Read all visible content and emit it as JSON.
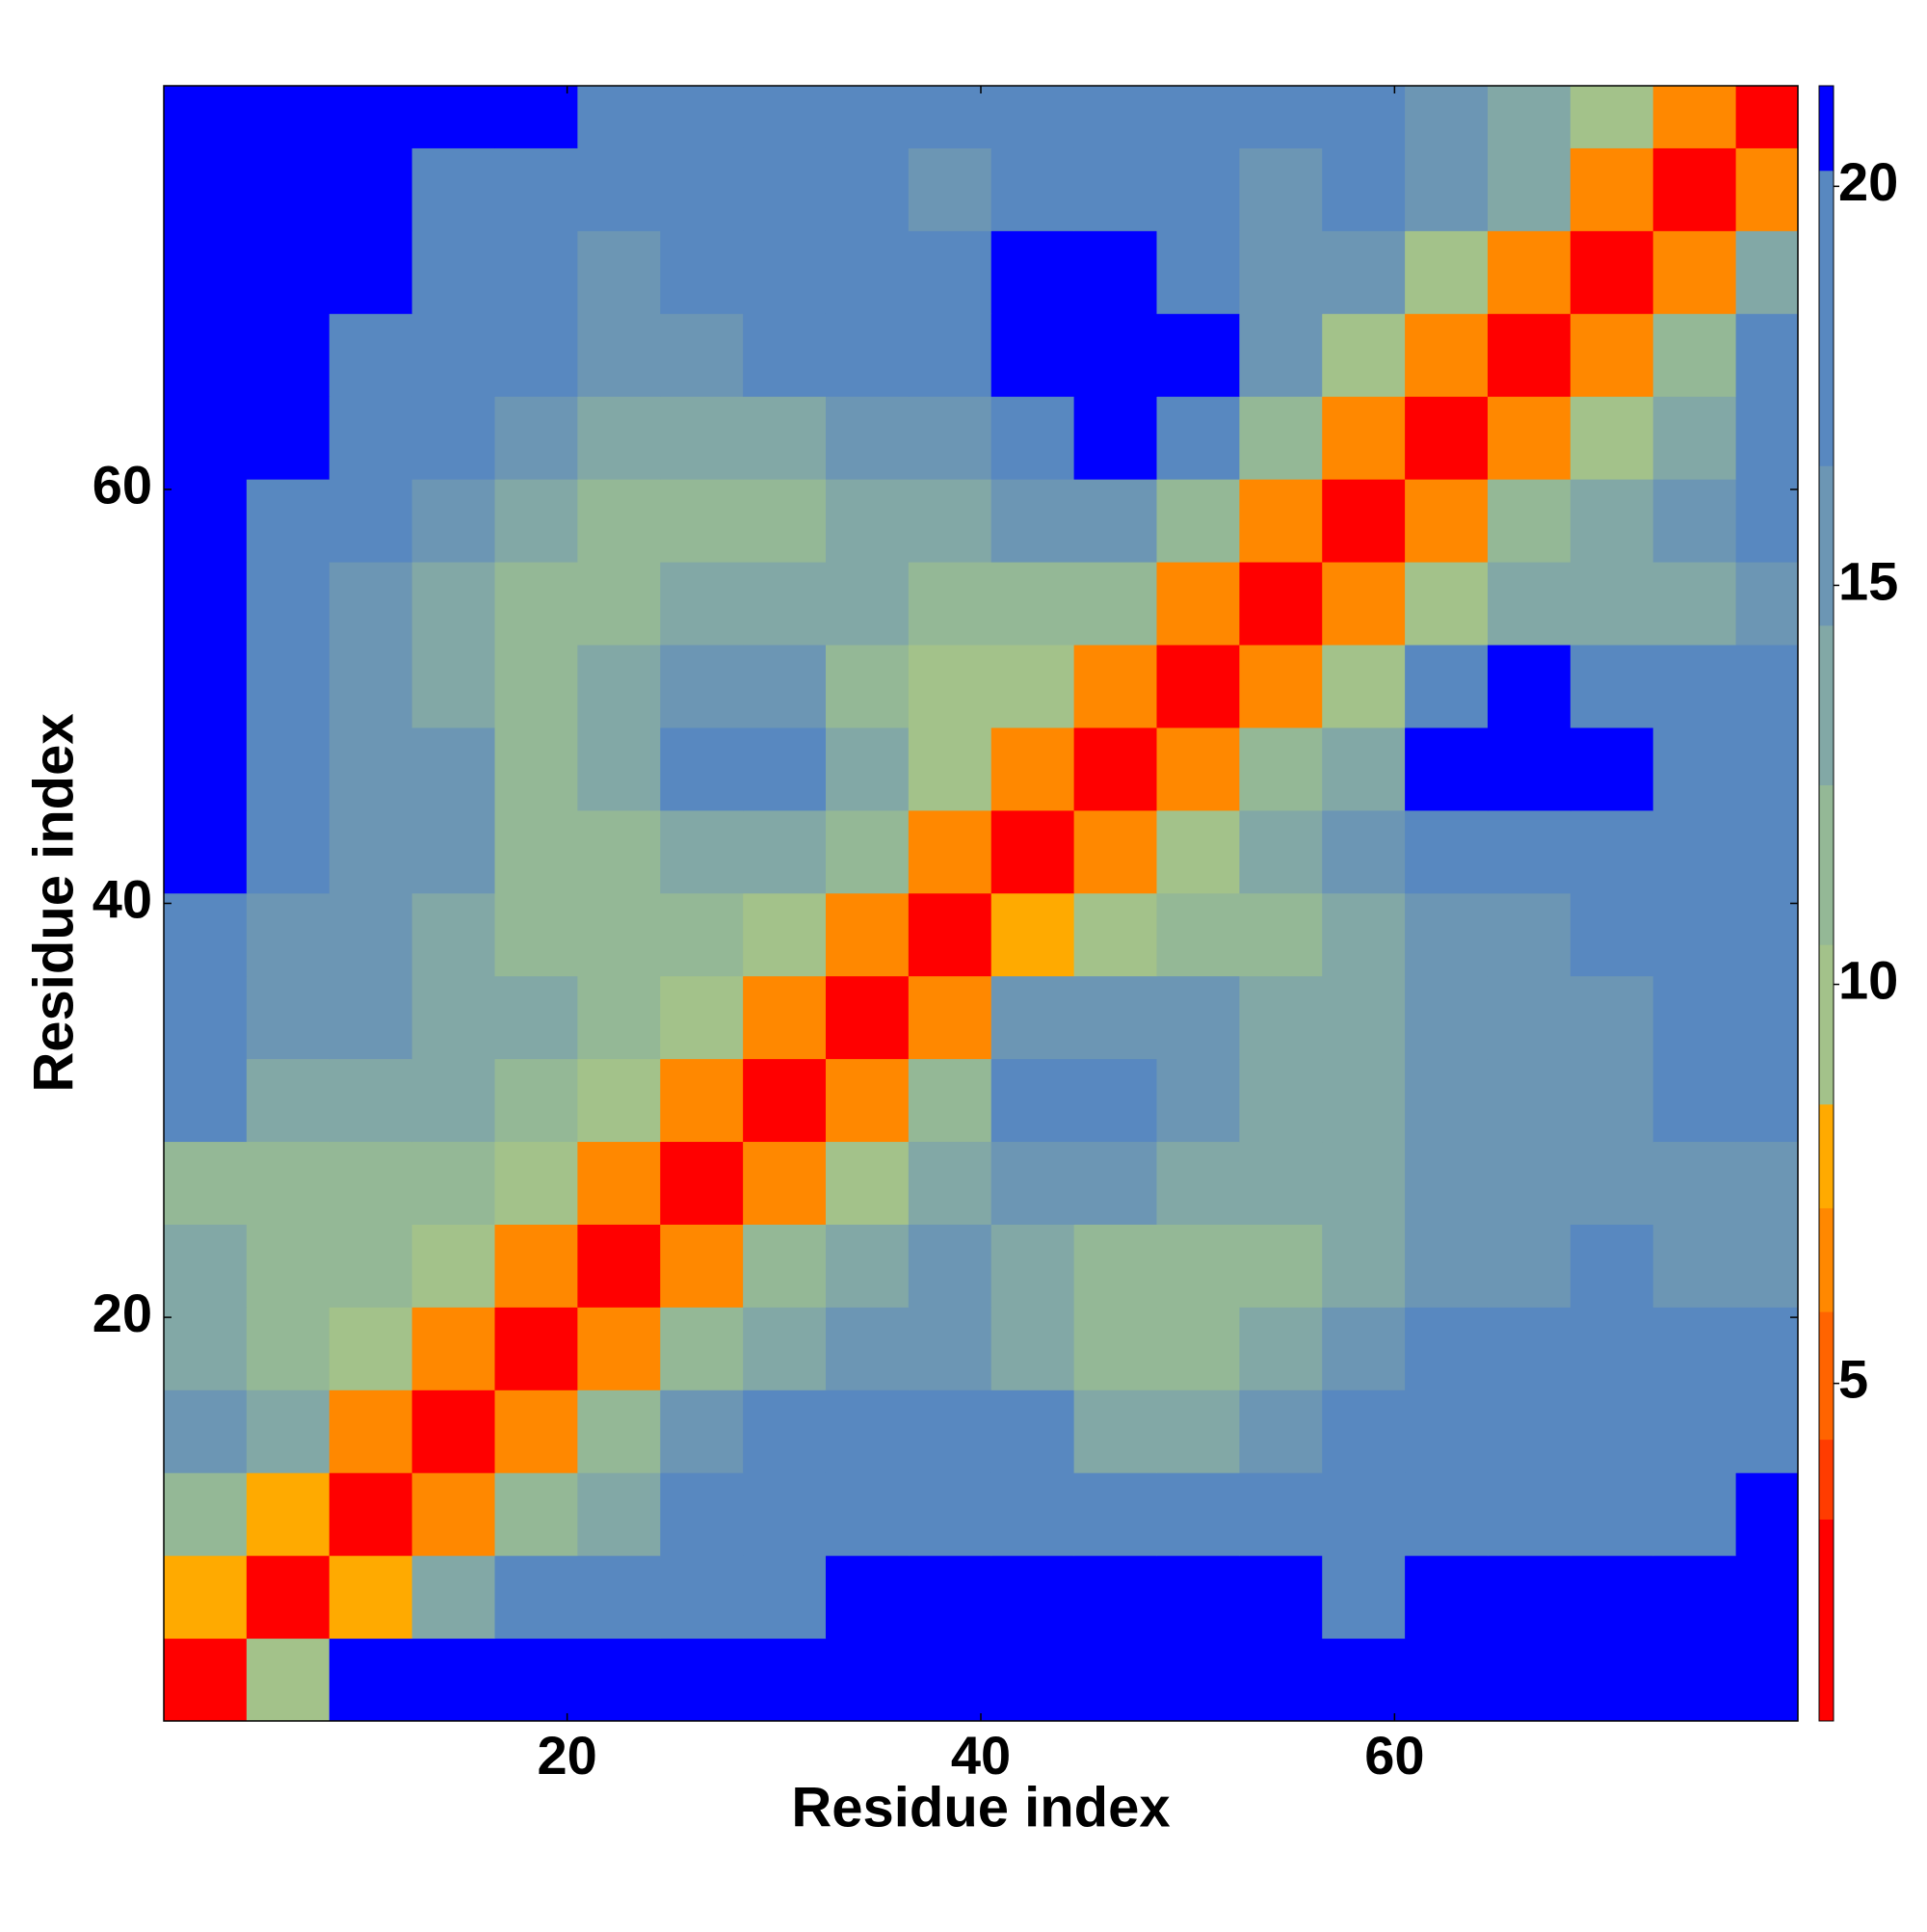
{
  "chart_data": {
    "type": "heatmap",
    "x_label": "Residue index",
    "y_label": "Residue index",
    "xlim": [
      0.5,
      79.5
    ],
    "ylim": [
      0.5,
      79.5
    ],
    "xticks": [
      20,
      40,
      60
    ],
    "yticks": [
      20,
      40,
      60
    ],
    "xbins": [
      0.5,
      4.5,
      8.5,
      12.5,
      16.5,
      20.5,
      24.5,
      28.5,
      32.5,
      36.5,
      40.5,
      44.5,
      48.5,
      52.5,
      56.5,
      60.5,
      64.5,
      68.5,
      72.5,
      76.5,
      79.5
    ],
    "ybins": [
      0.5,
      4.5,
      8.5,
      12.5,
      16.5,
      20.5,
      24.5,
      28.5,
      32.5,
      36.5,
      40.5,
      44.5,
      48.5,
      52.5,
      56.5,
      60.5,
      64.5,
      68.5,
      72.5,
      76.5,
      79.5
    ],
    "z": [
      [
        3,
        10,
        21,
        21,
        21,
        21,
        21,
        21,
        21,
        21,
        21,
        21,
        21,
        21,
        21,
        21,
        21,
        21,
        21,
        21
      ],
      [
        8,
        3,
        8,
        14,
        17,
        17,
        18,
        19,
        21,
        21,
        21,
        21,
        21,
        21,
        19,
        21,
        21,
        21,
        21,
        21
      ],
      [
        12,
        8,
        3,
        7,
        12,
        14,
        17,
        18,
        19,
        19,
        18,
        17,
        18,
        19,
        19,
        20,
        19,
        19,
        20,
        21
      ],
      [
        15,
        13,
        7,
        3,
        7,
        12,
        16,
        17,
        17,
        18,
        17,
        14,
        14,
        16,
        17,
        19,
        18,
        19,
        18,
        19
      ],
      [
        14,
        12,
        10,
        7,
        3,
        7,
        11,
        14,
        15,
        16,
        13,
        11,
        12,
        14,
        15,
        17,
        17,
        18,
        17,
        18
      ],
      [
        13,
        11,
        11,
        9,
        7,
        3,
        7,
        11,
        13,
        15,
        14,
        12,
        11,
        12,
        14,
        15,
        16,
        17,
        16,
        16
      ],
      [
        12,
        11,
        12,
        12,
        10,
        7,
        3,
        7,
        10,
        13,
        15,
        16,
        14,
        13,
        14,
        15,
        15,
        16,
        16,
        15
      ],
      [
        17,
        13,
        14,
        13,
        12,
        10,
        7,
        3,
        7,
        11,
        20,
        20,
        15,
        14,
        13,
        16,
        16,
        16,
        17,
        17
      ],
      [
        19,
        15,
        15,
        14,
        13,
        11,
        9,
        7,
        3,
        7,
        16,
        16,
        15,
        14,
        13,
        15,
        16,
        16,
        17,
        17
      ],
      [
        20,
        16,
        15,
        14,
        12,
        12,
        12,
        10,
        7,
        3,
        8,
        10,
        11,
        12,
        13,
        15,
        16,
        17,
        18,
        19
      ],
      [
        21,
        17,
        15,
        15,
        12,
        12,
        14,
        14,
        11,
        7,
        3,
        7,
        10,
        13,
        15,
        18,
        19,
        19,
        18,
        20
      ],
      [
        21,
        17,
        16,
        15,
        12,
        13,
        20,
        20,
        14,
        10,
        7,
        3,
        7,
        11,
        14,
        21,
        21,
        21,
        19,
        20
      ],
      [
        21,
        17,
        15,
        14,
        11,
        13,
        15,
        15,
        12,
        10,
        10,
        7,
        3,
        7,
        10,
        19,
        21,
        20,
        17,
        18
      ],
      [
        21,
        18,
        16,
        13,
        11,
        12,
        14,
        14,
        13,
        12,
        12,
        11,
        7,
        3,
        7,
        10,
        13,
        14,
        14,
        16
      ],
      [
        21,
        18,
        17,
        15,
        13,
        11,
        11,
        12,
        13,
        14,
        15,
        15,
        11,
        7,
        3,
        7,
        11,
        14,
        15,
        18
      ],
      [
        21,
        21,
        20,
        17,
        15,
        13,
        13,
        14,
        15,
        16,
        20,
        21,
        18,
        11,
        7,
        3,
        7,
        9,
        13,
        18
      ],
      [
        21,
        21,
        20,
        18,
        17,
        15,
        16,
        17,
        18,
        19,
        21,
        21,
        21,
        15,
        10,
        7,
        3,
        7,
        12,
        17
      ],
      [
        21,
        21,
        21,
        19,
        18,
        16,
        17,
        17,
        18,
        17,
        21,
        21,
        20,
        16,
        15,
        9,
        7,
        3,
        7,
        14
      ],
      [
        21,
        21,
        21,
        20,
        19,
        17,
        18,
        18,
        17,
        16,
        17,
        17,
        18,
        15,
        17,
        16,
        13,
        7,
        3,
        7
      ],
      [
        21,
        21,
        21,
        21,
        21,
        19,
        19,
        19,
        20,
        19,
        19,
        18,
        17,
        17,
        17,
        16,
        14,
        10,
        7,
        3
      ]
    ],
    "zlim": [
      0.77,
      21.26
    ],
    "zticks": [
      5,
      10,
      15,
      20
    ],
    "colormap": [
      {
        "value": 0.77,
        "color": "#ff0000"
      },
      {
        "value": 3.3,
        "color": "#ff3c00"
      },
      {
        "value": 4.3,
        "color": "#ff6400"
      },
      {
        "value": 5.9,
        "color": "#ff8800"
      },
      {
        "value": 7.2,
        "color": "#ffaa00"
      },
      {
        "value": 8.5,
        "color": "#a3c28a"
      },
      {
        "value": 10.5,
        "color": "#94b896"
      },
      {
        "value": 12.5,
        "color": "#82a8a6"
      },
      {
        "value": 14.5,
        "color": "#6c96b4"
      },
      {
        "value": 16.5,
        "color": "#5888c0"
      },
      {
        "value": 20.2,
        "color": "#0000ff"
      }
    ]
  }
}
